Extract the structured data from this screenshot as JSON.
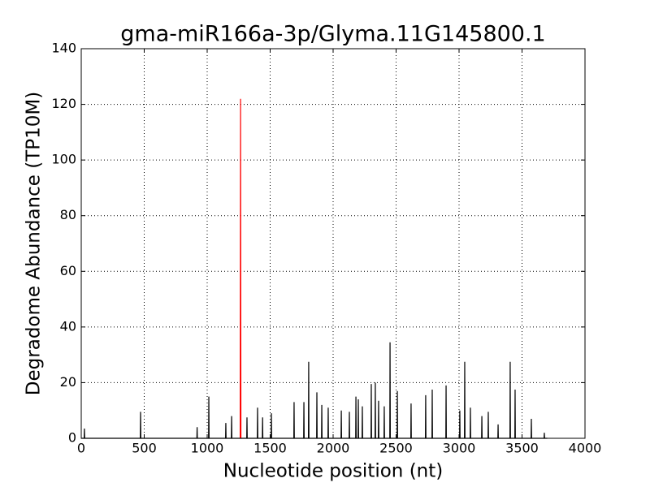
{
  "chart_data": {
    "type": "line",
    "title": "gma-miR166a-3p/Glyma.11G145800.1",
    "x_label": "Nucleotide position (nt)",
    "y_label": "Degradome Abundance (TP10M)",
    "xlim": [
      0,
      4000
    ],
    "ylim": [
      0,
      140
    ],
    "xticks": [
      0,
      500,
      1000,
      1500,
      2000,
      2500,
      3000,
      3500,
      4000
    ],
    "yticks": [
      0,
      20,
      40,
      60,
      80,
      100,
      120,
      140
    ],
    "grid": true,
    "series": [
      {
        "color": "#000000",
        "x": [
          0,
          23,
          25,
          27,
          469,
          471,
          473,
          918,
          920,
          922,
          1011,
          1013,
          1015,
          1146,
          1148,
          1150,
          1192,
          1194,
          1196,
          1314,
          1316,
          1318,
          1398,
          1400,
          1402,
          1438,
          1440,
          1442,
          1508,
          1510,
          1512,
          1688,
          1690,
          1692,
          1766,
          1768,
          1770,
          1804,
          1806,
          1808,
          1869,
          1871,
          1873,
          1908,
          1910,
          1912,
          1959,
          1961,
          1963,
          2063,
          2065,
          2067,
          2127,
          2129,
          2131,
          2179,
          2181,
          2183,
          2198,
          2200,
          2202,
          2230,
          2232,
          2234,
          2301,
          2303,
          2305,
          2333,
          2335,
          2337,
          2359,
          2361,
          2363,
          2404,
          2406,
          2408,
          2450,
          2452,
          2454,
          2508,
          2510,
          2512,
          2617,
          2619,
          2621,
          2733,
          2735,
          2737,
          2785,
          2787,
          2789,
          2895,
          2897,
          2899,
          3004,
          3006,
          3008,
          3043,
          3045,
          3047,
          3088,
          3090,
          3092,
          3179,
          3181,
          3183,
          3230,
          3232,
          3234,
          3308,
          3310,
          3312,
          3404,
          3406,
          3408,
          3443,
          3445,
          3447,
          3572,
          3574,
          3576,
          3675,
          3677,
          3679,
          3700
        ],
        "values": [
          0,
          0,
          3.5,
          0,
          0,
          9.5,
          0,
          0,
          4,
          0,
          0,
          15,
          0,
          0,
          5.5,
          0,
          0,
          8,
          0,
          0,
          7.5,
          0,
          0,
          11,
          0,
          0,
          7.5,
          0,
          0,
          9,
          0,
          0,
          13,
          0,
          0,
          13,
          0,
          0,
          27.5,
          0,
          0,
          16.5,
          0,
          0,
          12,
          0,
          0,
          11,
          0,
          0,
          10,
          0,
          0,
          9.5,
          0,
          0,
          15,
          0,
          0,
          14,
          0,
          0,
          11.5,
          0,
          0,
          19.5,
          0,
          0,
          20,
          0,
          0,
          13.5,
          0,
          0,
          11.5,
          0,
          0,
          34.5,
          0,
          0,
          17,
          0,
          0,
          12.5,
          0,
          0,
          15.5,
          0,
          0,
          17.5,
          0,
          0,
          19,
          0,
          0,
          10,
          0,
          0,
          27.5,
          0,
          0,
          11,
          0,
          0,
          8,
          0,
          0,
          9.5,
          0,
          0,
          5,
          0,
          0,
          27.5,
          0,
          0,
          17.5,
          0,
          0,
          7,
          0,
          0,
          2,
          0,
          0
        ]
      },
      {
        "color": "#ff0000",
        "x": [
          1262,
          1265,
          1268
        ],
        "values": [
          0,
          122,
          0
        ]
      }
    ]
  }
}
